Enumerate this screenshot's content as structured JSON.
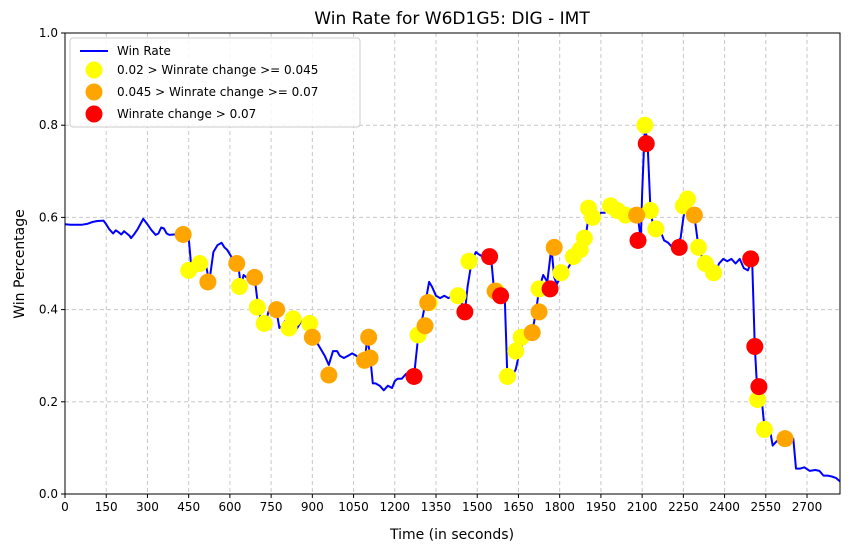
{
  "chart_data": {
    "type": "line",
    "title": "Win Rate for W6D1G5: DIG - IMT",
    "xlabel": "Time (in seconds)",
    "ylabel": "Win Percentage",
    "xlim": [
      0,
      2820
    ],
    "ylim": [
      0.0,
      1.0
    ],
    "xticks": [
      0,
      150,
      300,
      450,
      600,
      750,
      900,
      1050,
      1200,
      1350,
      1500,
      1650,
      1800,
      1950,
      2100,
      2250,
      2400,
      2550,
      2700
    ],
    "yticks": [
      0.0,
      0.2,
      0.4,
      0.6,
      0.8,
      1.0
    ],
    "xtick_labels": [
      "0",
      "150",
      "300",
      "450",
      "600",
      "750",
      "900",
      "1050",
      "1200",
      "1350",
      "1500",
      "1650",
      "1800",
      "1950",
      "2100",
      "2250",
      "2400",
      "2550",
      "2700"
    ],
    "ytick_labels": [
      "0.0",
      "0.2",
      "0.4",
      "0.6",
      "0.8",
      "1.0"
    ],
    "grid": true,
    "legend_position": "top-left",
    "line": {
      "name": "Win Rate",
      "color": "#0000ff",
      "points": [
        [
          0,
          0.585
        ],
        [
          20,
          0.584
        ],
        [
          40,
          0.584
        ],
        [
          60,
          0.584
        ],
        [
          80,
          0.586
        ],
        [
          100,
          0.59
        ],
        [
          115,
          0.592
        ],
        [
          140,
          0.593
        ],
        [
          150,
          0.585
        ],
        [
          160,
          0.575
        ],
        [
          175,
          0.565
        ],
        [
          185,
          0.572
        ],
        [
          195,
          0.568
        ],
        [
          205,
          0.563
        ],
        [
          215,
          0.57
        ],
        [
          225,
          0.565
        ],
        [
          235,
          0.56
        ],
        [
          240,
          0.555
        ],
        [
          250,
          0.562
        ],
        [
          265,
          0.575
        ],
        [
          280,
          0.592
        ],
        [
          285,
          0.597
        ],
        [
          300,
          0.585
        ],
        [
          315,
          0.572
        ],
        [
          330,
          0.562
        ],
        [
          340,
          0.565
        ],
        [
          350,
          0.578
        ],
        [
          360,
          0.576
        ],
        [
          370,
          0.565
        ],
        [
          380,
          0.562
        ],
        [
          395,
          0.563
        ],
        [
          410,
          0.563
        ],
        [
          425,
          0.563
        ],
        [
          435,
          0.56
        ],
        [
          450,
          0.555
        ],
        [
          460,
          0.49
        ],
        [
          475,
          0.495
        ],
        [
          490,
          0.505
        ],
        [
          500,
          0.498
        ],
        [
          510,
          0.495
        ],
        [
          515,
          0.49
        ],
        [
          525,
          0.46
        ],
        [
          540,
          0.525
        ],
        [
          555,
          0.54
        ],
        [
          570,
          0.545
        ],
        [
          580,
          0.535
        ],
        [
          590,
          0.53
        ],
        [
          610,
          0.51
        ],
        [
          620,
          0.505
        ],
        [
          630,
          0.5
        ],
        [
          640,
          0.45
        ],
        [
          650,
          0.475
        ],
        [
          660,
          0.47
        ],
        [
          670,
          0.465
        ],
        [
          690,
          0.47
        ],
        [
          700,
          0.42
        ],
        [
          715,
          0.365
        ],
        [
          730,
          0.37
        ],
        [
          740,
          0.395
        ],
        [
          755,
          0.405
        ],
        [
          770,
          0.395
        ],
        [
          780,
          0.36
        ],
        [
          790,
          0.365
        ],
        [
          800,
          0.375
        ],
        [
          815,
          0.37
        ],
        [
          830,
          0.355
        ],
        [
          845,
          0.36
        ],
        [
          860,
          0.375
        ],
        [
          875,
          0.37
        ],
        [
          890,
          0.365
        ],
        [
          905,
          0.34
        ],
        [
          915,
          0.33
        ],
        [
          930,
          0.315
        ],
        [
          945,
          0.3
        ],
        [
          960,
          0.28
        ],
        [
          975,
          0.31
        ],
        [
          990,
          0.31
        ],
        [
          1000,
          0.3
        ],
        [
          1015,
          0.295
        ],
        [
          1030,
          0.3
        ],
        [
          1045,
          0.305
        ],
        [
          1060,
          0.3
        ],
        [
          1075,
          0.29
        ],
        [
          1090,
          0.285
        ],
        [
          1100,
          0.34
        ],
        [
          1110,
          0.3
        ],
        [
          1120,
          0.24
        ],
        [
          1130,
          0.24
        ],
        [
          1145,
          0.235
        ],
        [
          1160,
          0.225
        ],
        [
          1175,
          0.235
        ],
        [
          1190,
          0.23
        ],
        [
          1200,
          0.245
        ],
        [
          1210,
          0.25
        ],
        [
          1225,
          0.25
        ],
        [
          1240,
          0.26
        ],
        [
          1255,
          0.265
        ],
        [
          1270,
          0.255
        ],
        [
          1285,
          0.34
        ],
        [
          1295,
          0.365
        ],
        [
          1310,
          0.41
        ],
        [
          1325,
          0.46
        ],
        [
          1335,
          0.45
        ],
        [
          1350,
          0.43
        ],
        [
          1365,
          0.425
        ],
        [
          1380,
          0.43
        ],
        [
          1395,
          0.425
        ],
        [
          1410,
          0.43
        ],
        [
          1420,
          0.44
        ],
        [
          1440,
          0.42
        ],
        [
          1455,
          0.395
        ],
        [
          1465,
          0.45
        ],
        [
          1480,
          0.505
        ],
        [
          1495,
          0.525
        ],
        [
          1505,
          0.52
        ],
        [
          1520,
          0.515
        ],
        [
          1535,
          0.51
        ],
        [
          1550,
          0.515
        ],
        [
          1560,
          0.45
        ],
        [
          1570,
          0.44
        ],
        [
          1585,
          0.43
        ],
        [
          1600,
          0.43
        ],
        [
          1610,
          0.245
        ],
        [
          1625,
          0.255
        ],
        [
          1640,
          0.27
        ],
        [
          1655,
          0.31
        ],
        [
          1670,
          0.335
        ],
        [
          1690,
          0.34
        ],
        [
          1700,
          0.35
        ],
        [
          1715,
          0.4
        ],
        [
          1725,
          0.445
        ],
        [
          1740,
          0.475
        ],
        [
          1755,
          0.46
        ],
        [
          1770,
          0.535
        ],
        [
          1780,
          0.47
        ],
        [
          1790,
          0.455
        ],
        [
          1805,
          0.475
        ],
        [
          1820,
          0.48
        ],
        [
          1840,
          0.5
        ],
        [
          1860,
          0.52
        ],
        [
          1875,
          0.525
        ],
        [
          1885,
          0.545
        ],
        [
          1895,
          0.56
        ],
        [
          1905,
          0.6
        ],
        [
          1920,
          0.615
        ],
        [
          1935,
          0.6
        ],
        [
          1950,
          0.61
        ],
        [
          1965,
          0.61
        ],
        [
          1980,
          0.625
        ],
        [
          1990,
          0.62
        ],
        [
          2005,
          0.605
        ],
        [
          2020,
          0.6
        ],
        [
          2030,
          0.61
        ],
        [
          2045,
          0.6
        ],
        [
          2060,
          0.605
        ],
        [
          2075,
          0.59
        ],
        [
          2085,
          0.6
        ],
        [
          2095,
          0.55
        ],
        [
          2100,
          0.65
        ],
        [
          2110,
          0.8
        ],
        [
          2120,
          0.76
        ],
        [
          2130,
          0.62
        ],
        [
          2140,
          0.58
        ],
        [
          2150,
          0.57
        ],
        [
          2170,
          0.565
        ],
        [
          2180,
          0.55
        ],
        [
          2195,
          0.545
        ],
        [
          2210,
          0.535
        ],
        [
          2225,
          0.545
        ],
        [
          2240,
          0.555
        ],
        [
          2250,
          0.6
        ],
        [
          2265,
          0.64
        ],
        [
          2275,
          0.61
        ],
        [
          2290,
          0.605
        ],
        [
          2305,
          0.535
        ],
        [
          2320,
          0.51
        ],
        [
          2335,
          0.495
        ],
        [
          2350,
          0.485
        ],
        [
          2365,
          0.48
        ],
        [
          2380,
          0.5
        ],
        [
          2395,
          0.51
        ],
        [
          2410,
          0.505
        ],
        [
          2425,
          0.51
        ],
        [
          2440,
          0.5
        ],
        [
          2455,
          0.51
        ],
        [
          2470,
          0.49
        ],
        [
          2485,
          0.485
        ],
        [
          2500,
          0.51
        ],
        [
          2510,
          0.32
        ],
        [
          2520,
          0.21
        ],
        [
          2525,
          0.23
        ],
        [
          2535,
          0.205
        ],
        [
          2545,
          0.145
        ],
        [
          2555,
          0.13
        ],
        [
          2565,
          0.14
        ],
        [
          2575,
          0.105
        ],
        [
          2590,
          0.115
        ],
        [
          2605,
          0.11
        ],
        [
          2620,
          0.12
        ],
        [
          2640,
          0.115
        ],
        [
          2650,
          0.12
        ],
        [
          2660,
          0.055
        ],
        [
          2675,
          0.055
        ],
        [
          2690,
          0.058
        ],
        [
          2710,
          0.05
        ],
        [
          2730,
          0.052
        ],
        [
          2745,
          0.05
        ],
        [
          2760,
          0.04
        ],
        [
          2775,
          0.04
        ],
        [
          2790,
          0.038
        ],
        [
          2805,
          0.035
        ],
        [
          2815,
          0.03
        ],
        [
          2825,
          0.025
        ],
        [
          2835,
          0.022
        ],
        [
          2845,
          0.018
        ],
        [
          2855,
          0.02
        ]
      ]
    },
    "marker_series": [
      {
        "name": " 0.02 > Winrate change >= 0.045",
        "color": "#ffff00",
        "points": [
          [
            450,
            0.485
          ],
          [
            490,
            0.5
          ],
          [
            635,
            0.45
          ],
          [
            700,
            0.405
          ],
          [
            725,
            0.37
          ],
          [
            815,
            0.36
          ],
          [
            830,
            0.38
          ],
          [
            890,
            0.37
          ],
          [
            1090,
            0.29
          ],
          [
            1285,
            0.345
          ],
          [
            1325,
            0.415
          ],
          [
            1430,
            0.43
          ],
          [
            1470,
            0.505
          ],
          [
            1570,
            0.44
          ],
          [
            1610,
            0.255
          ],
          [
            1640,
            0.31
          ],
          [
            1660,
            0.34
          ],
          [
            1725,
            0.445
          ],
          [
            1805,
            0.48
          ],
          [
            1850,
            0.515
          ],
          [
            1875,
            0.53
          ],
          [
            1890,
            0.555
          ],
          [
            1905,
            0.62
          ],
          [
            1920,
            0.6
          ],
          [
            1985,
            0.625
          ],
          [
            2010,
            0.615
          ],
          [
            2040,
            0.605
          ],
          [
            2110,
            0.8
          ],
          [
            2130,
            0.615
          ],
          [
            2150,
            0.575
          ],
          [
            2250,
            0.625
          ],
          [
            2265,
            0.64
          ],
          [
            2305,
            0.535
          ],
          [
            2330,
            0.5
          ],
          [
            2360,
            0.48
          ],
          [
            2520,
            0.205
          ],
          [
            2545,
            0.14
          ]
        ]
      },
      {
        "name": "0.045 > Winrate change >= 0.07",
        "color": "#ffa500",
        "points": [
          [
            430,
            0.563
          ],
          [
            520,
            0.46
          ],
          [
            625,
            0.5
          ],
          [
            690,
            0.47
          ],
          [
            770,
            0.4
          ],
          [
            900,
            0.34
          ],
          [
            960,
            0.258
          ],
          [
            1090,
            0.29
          ],
          [
            1105,
            0.34
          ],
          [
            1110,
            0.295
          ],
          [
            1310,
            0.365
          ],
          [
            1320,
            0.415
          ],
          [
            1565,
            0.44
          ],
          [
            1700,
            0.35
          ],
          [
            1725,
            0.395
          ],
          [
            1780,
            0.535
          ],
          [
            2080,
            0.605
          ],
          [
            2290,
            0.605
          ],
          [
            2620,
            0.12
          ]
        ]
      },
      {
        "name": "Winrate change > 0.07",
        "color": "#ff0000",
        "points": [
          [
            1270,
            0.255
          ],
          [
            1455,
            0.395
          ],
          [
            1545,
            0.515
          ],
          [
            1585,
            0.43
          ],
          [
            1765,
            0.445
          ],
          [
            2085,
            0.55
          ],
          [
            2115,
            0.76
          ],
          [
            2235,
            0.535
          ],
          [
            2495,
            0.51
          ],
          [
            2510,
            0.32
          ],
          [
            2525,
            0.233
          ]
        ]
      }
    ]
  }
}
